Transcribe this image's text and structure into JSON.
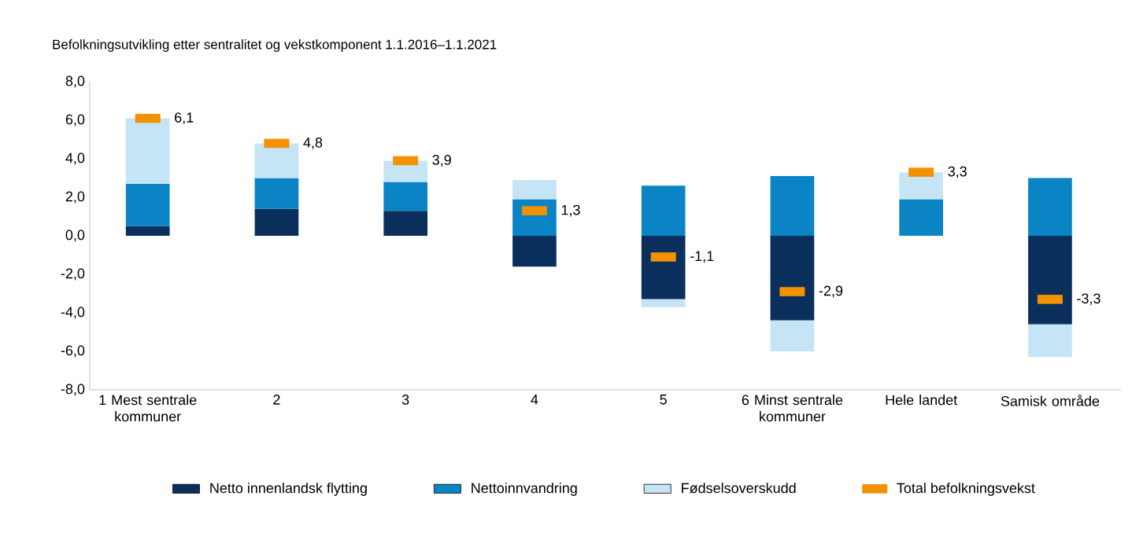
{
  "chart_data": {
    "type": "bar",
    "stacked": true,
    "title": "Befolkningsutvikling etter sentralitet og vekstkomponent 1.1.2016–1.1.2021",
    "categories": [
      "1 Mest sentrale kommuner",
      "2",
      "3",
      "4",
      "5",
      "6 Minst sentrale kommuner",
      "Hele landet",
      "Samisk område"
    ],
    "series": [
      {
        "name": "Netto innenlandsk flytting",
        "color": "#0a2f5c",
        "values": [
          0.5,
          1.4,
          1.3,
          -1.6,
          -3.3,
          -4.4,
          0,
          -4.6
        ]
      },
      {
        "name": "Nettoinnvandring",
        "color": "#0b84c6",
        "values": [
          2.2,
          1.6,
          1.5,
          1.9,
          2.6,
          3.1,
          1.9,
          3.0
        ]
      },
      {
        "name": "Fødselsoverskudd",
        "color": "#c5e4f6",
        "values": [
          3.4,
          1.8,
          1.1,
          1.0,
          -0.4,
          -1.6,
          1.4,
          -1.7
        ]
      },
      {
        "name": "Total befolkningsvekst",
        "color": "#f39200",
        "type": "scatter",
        "values": [
          6.1,
          4.8,
          3.9,
          1.3,
          -1.1,
          -2.9,
          3.3,
          -3.3
        ],
        "value_labels": [
          "6,1",
          "4,8",
          "3,9",
          "1,3",
          "-1,1",
          "-2,9",
          "3,3",
          "-3,3"
        ]
      }
    ],
    "ylim": [
      -8,
      8
    ],
    "yticks": [
      {
        "value": -8,
        "label": "-8,0"
      },
      {
        "value": -6,
        "label": "-6,0"
      },
      {
        "value": -4,
        "label": "-4,0"
      },
      {
        "value": -2,
        "label": "-2,0"
      },
      {
        "value": 0,
        "label": "0,0"
      },
      {
        "value": 2,
        "label": "2,0"
      },
      {
        "value": 4,
        "label": "4,0"
      },
      {
        "value": 6,
        "label": "6,0"
      },
      {
        "value": 8,
        "label": "8,0"
      }
    ],
    "legend": "bottom"
  }
}
